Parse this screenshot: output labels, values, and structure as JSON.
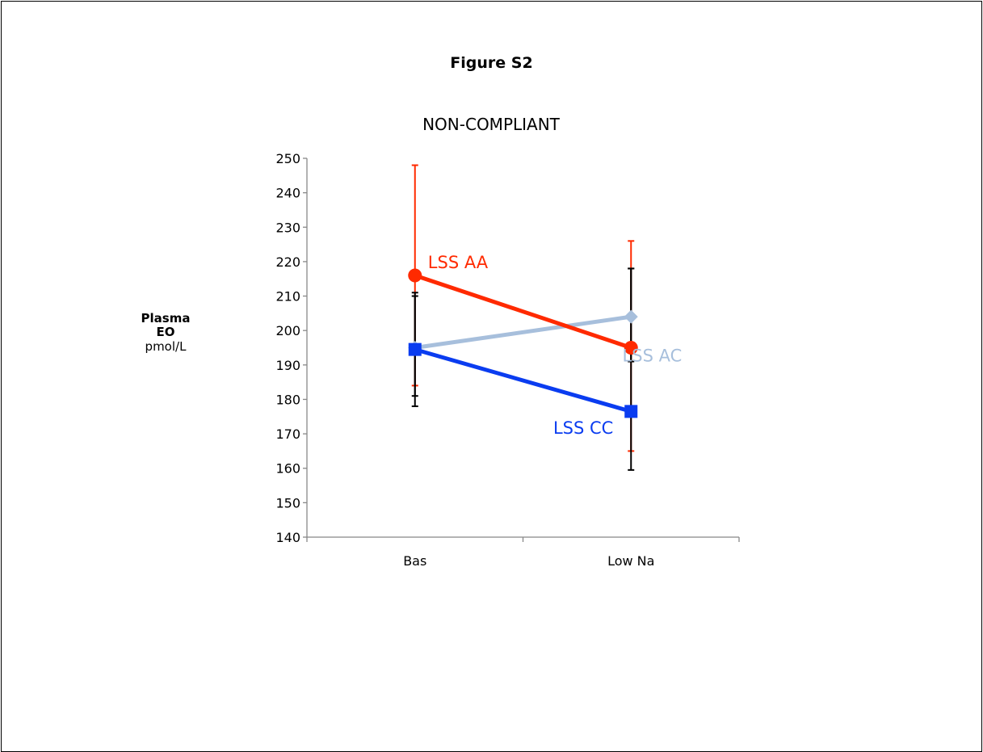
{
  "figure_label": "Figure S2",
  "chart_data": {
    "type": "line",
    "title": "NON-COMPLIANT",
    "ylabel_lines": [
      "Plasma",
      "EO",
      "pmol/L"
    ],
    "xlabel": "",
    "categories": [
      "Bas",
      "Low Na"
    ],
    "ylim": [
      140,
      250
    ],
    "yticks": [
      140,
      150,
      160,
      170,
      180,
      190,
      200,
      210,
      220,
      230,
      240,
      250
    ],
    "grid": false,
    "legend": "inline labels",
    "series": [
      {
        "name": "LSS AA",
        "values": [
          216,
          195
        ],
        "error_high": [
          248,
          226
        ],
        "error_low": [
          184,
          165
        ],
        "color": "#ff2a00",
        "marker": "circle",
        "label_pos": [
          0.28,
          219
        ],
        "errbar_color": "#ff2a00"
      },
      {
        "name": "LSS AC",
        "values": [
          195,
          204
        ],
        "error_high": [
          211,
          218
        ],
        "error_low": [
          181,
          191
        ],
        "color": "#a7bfdc",
        "marker": "diamond",
        "label_pos": [
          0.73,
          192
        ],
        "errbar_color": "#000000"
      },
      {
        "name": "LSS CC",
        "values": [
          194.5,
          176.5
        ],
        "error_high": [
          210,
          218
        ],
        "error_low": [
          178,
          159.5
        ],
        "color": "#0a3cf0",
        "marker": "square",
        "label_pos": [
          0.57,
          171
        ],
        "errbar_color": "#000000"
      }
    ]
  }
}
